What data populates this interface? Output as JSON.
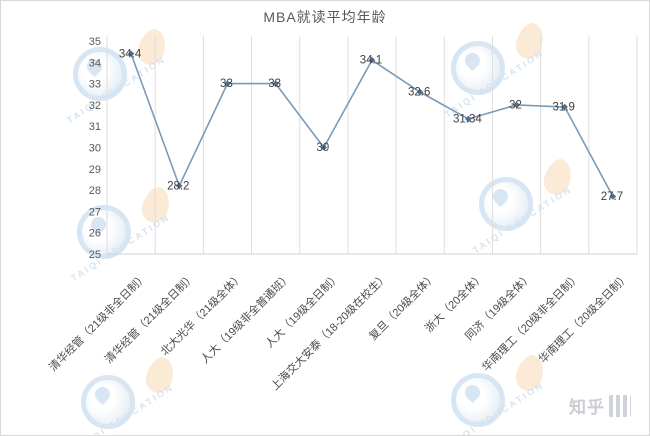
{
  "watermarks": {
    "brand": "TAIQI EDUCATION",
    "zhihu": "知乎"
  },
  "chart_data": {
    "type": "line",
    "title": "MBA就读平均年龄",
    "categories": [
      "清华经管（21级非全日制）",
      "清华经管（21级全日制）",
      "北大光华（21级全体）",
      "人大（19级非全普通班）",
      "人大（19级全日制）",
      "上海交大安泰（18-20级在校生）",
      "复旦（20级全体）",
      "浙大（20全体）",
      "同济（19级全体）",
      "华南理工（20级非全日制）",
      "华南理工（20级全日制）"
    ],
    "values": [
      34.4,
      28.2,
      33,
      33,
      30,
      34.1,
      32.6,
      31.34,
      32,
      31.9,
      27.7
    ],
    "point_labels": [
      "34.4",
      "28.2",
      "33",
      "33",
      "30",
      "34.1",
      "32.6",
      "31.34",
      "32",
      "31.9",
      "27.7"
    ],
    "xlabel": "",
    "ylabel": "",
    "ylim": [
      25,
      35
    ],
    "yticks": [
      35,
      34,
      33,
      32,
      31,
      30,
      29,
      28,
      27,
      26,
      25
    ],
    "grid": "vertical-only",
    "legend": "none",
    "line_color": "#7a9ab8",
    "marker_color": "#4e7094",
    "label_color": "#404040",
    "axis_text_color": "#595959",
    "gridline_color": "#dedede",
    "axis_line_color": "#d0d0d0"
  }
}
